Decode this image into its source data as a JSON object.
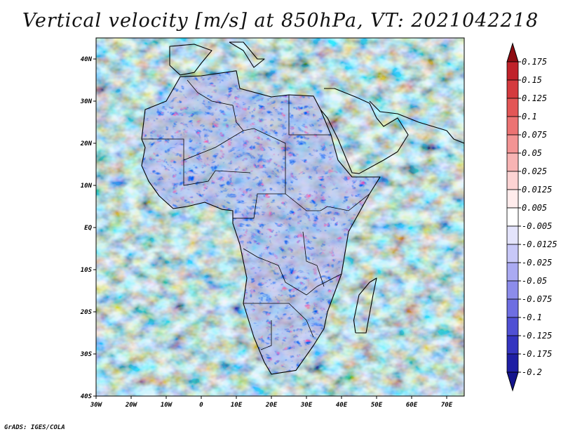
{
  "title": "Vertical velocity [m/s] at 850hPa, VT: 2021042218",
  "footer": "GrADS: IGES/COLA",
  "map": {
    "region": "Africa",
    "lon_range": [
      -30,
      75
    ],
    "lat_range": [
      -40,
      45
    ],
    "lon_ticks": [
      {
        "value": -30,
        "label": "30W"
      },
      {
        "value": -20,
        "label": "20W"
      },
      {
        "value": -10,
        "label": "10W"
      },
      {
        "value": 0,
        "label": "0"
      },
      {
        "value": 10,
        "label": "10E"
      },
      {
        "value": 20,
        "label": "20E"
      },
      {
        "value": 30,
        "label": "30E"
      },
      {
        "value": 40,
        "label": "40E"
      },
      {
        "value": 50,
        "label": "50E"
      },
      {
        "value": 60,
        "label": "60E"
      },
      {
        "value": 70,
        "label": "70E"
      }
    ],
    "lat_ticks": [
      {
        "value": 40,
        "label": "40N"
      },
      {
        "value": 30,
        "label": "30N"
      },
      {
        "value": 20,
        "label": "20N"
      },
      {
        "value": 10,
        "label": "10N"
      },
      {
        "value": 0,
        "label": "EQ"
      },
      {
        "value": -10,
        "label": "10S"
      },
      {
        "value": -20,
        "label": "20S"
      },
      {
        "value": -30,
        "label": "30S"
      },
      {
        "value": -40,
        "label": "40S"
      }
    ]
  },
  "colorbar": {
    "levels": [
      {
        "label": "0.175",
        "color": "#a8141c"
      },
      {
        "label": "0.15",
        "color": "#c0222a"
      },
      {
        "label": "0.125",
        "color": "#d43a3e"
      },
      {
        "label": "0.1",
        "color": "#e35656"
      },
      {
        "label": "0.075",
        "color": "#ec7373"
      },
      {
        "label": "0.05",
        "color": "#f39494"
      },
      {
        "label": "0.025",
        "color": "#f8b4b4"
      },
      {
        "label": "0.0125",
        "color": "#fcd3d3"
      },
      {
        "label": "0.005",
        "color": "#ffecec"
      },
      {
        "label": "-0.005",
        "color": "#ffffff"
      },
      {
        "label": "-0.0125",
        "color": "#e4e4fc"
      },
      {
        "label": "-0.025",
        "color": "#c8c8f8"
      },
      {
        "label": "-0.05",
        "color": "#aaaaf2"
      },
      {
        "label": "-0.075",
        "color": "#8c8ceb"
      },
      {
        "label": "-0.1",
        "color": "#6e6ee2"
      },
      {
        "label": "-0.125",
        "color": "#5050d4"
      },
      {
        "label": "-0.175",
        "color": "#3434c0"
      },
      {
        "label": "-0.2",
        "color": "#1e1ea4"
      }
    ],
    "top_arrow_color": "#8e0c12",
    "bottom_arrow_color": "#14148c"
  }
}
